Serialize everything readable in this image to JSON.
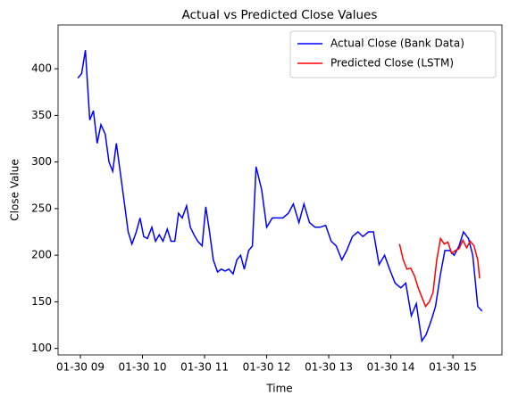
{
  "chart_data": {
    "type": "line",
    "title": "Actual vs Predicted Close Values",
    "xlabel": "Time",
    "ylabel": "Close Value",
    "xlim": [
      8.64,
      15.79
    ],
    "ylim": [
      93,
      447
    ],
    "xticks": [
      {
        "value": 9,
        "label": "01-30 09"
      },
      {
        "value": 10,
        "label": "01-30 10"
      },
      {
        "value": 11,
        "label": "01-30 11"
      },
      {
        "value": 12,
        "label": "01-30 12"
      },
      {
        "value": 13,
        "label": "01-30 13"
      },
      {
        "value": 14,
        "label": "01-30 14"
      },
      {
        "value": 15,
        "label": "01-30 15"
      }
    ],
    "yticks": [
      100,
      150,
      200,
      250,
      300,
      350,
      400
    ],
    "legend": "upper right",
    "series": [
      {
        "name": "Actual Close (Bank Data)",
        "color": "#0000ff",
        "x": [
          8.96,
          9.02,
          9.08,
          9.15,
          9.21,
          9.27,
          9.33,
          9.4,
          9.46,
          9.52,
          9.58,
          9.65,
          9.71,
          9.77,
          9.83,
          9.9,
          9.96,
          10.02,
          10.08,
          10.15,
          10.21,
          10.27,
          10.33,
          10.4,
          10.46,
          10.52,
          10.58,
          10.64,
          10.71,
          10.77,
          10.83,
          10.89,
          10.96,
          11.02,
          11.08,
          11.14,
          11.21,
          11.27,
          11.33,
          11.39,
          11.46,
          11.52,
          11.58,
          11.64,
          11.71,
          11.77,
          11.83,
          11.92,
          12.0,
          12.09,
          12.17,
          12.26,
          12.35,
          12.43,
          12.52,
          12.6,
          12.69,
          12.78,
          12.86,
          12.95,
          13.04,
          13.12,
          13.21,
          13.29,
          13.38,
          13.47,
          13.55,
          13.64,
          13.72,
          13.81,
          13.9,
          13.98,
          14.07,
          14.16,
          14.24,
          14.33,
          14.41,
          14.5,
          14.57,
          14.65,
          14.72,
          14.8,
          14.87,
          14.95,
          15.02,
          15.1,
          15.17,
          15.25,
          15.32,
          15.4,
          15.47
        ],
        "values": [
          390,
          395,
          420,
          345,
          355,
          320,
          340,
          330,
          300,
          290,
          320,
          285,
          255,
          225,
          212,
          225,
          240,
          220,
          218,
          230,
          215,
          222,
          215,
          228,
          215,
          215,
          245,
          240,
          253,
          230,
          222,
          215,
          210,
          252,
          225,
          195,
          182,
          185,
          183,
          185,
          180,
          195,
          200,
          185,
          205,
          210,
          295,
          270,
          230,
          240,
          240,
          240,
          245,
          255,
          235,
          255,
          235,
          230,
          230,
          232,
          215,
          210,
          195,
          205,
          220,
          225,
          220,
          225,
          225,
          190,
          200,
          185,
          170,
          165,
          170,
          135,
          148,
          108,
          115,
          130,
          145,
          180,
          205,
          205,
          200,
          210,
          225,
          218,
          200,
          145,
          140
        ]
      },
      {
        "name": "Predicted Close (LSTM)",
        "color": "#ff0000",
        "x": [
          14.14,
          14.2,
          14.26,
          14.32,
          14.38,
          14.44,
          14.5,
          14.56,
          14.62,
          14.68,
          14.74,
          14.8,
          14.86,
          14.92,
          14.98,
          15.04,
          15.1,
          15.16,
          15.22,
          15.28,
          15.34,
          15.4,
          15.43
        ],
        "values": [
          212,
          195,
          185,
          186,
          178,
          165,
          155,
          145,
          150,
          160,
          195,
          218,
          212,
          214,
          202,
          205,
          207,
          216,
          208,
          215,
          210,
          195,
          175
        ]
      }
    ]
  }
}
